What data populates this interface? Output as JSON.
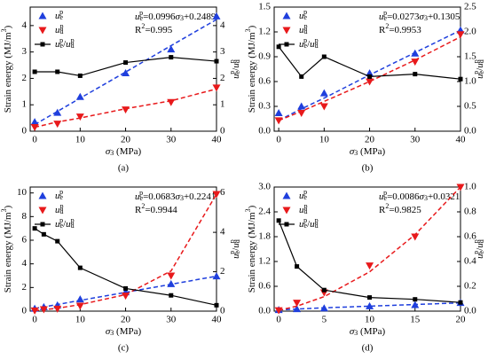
{
  "chart_data": [
    {
      "type": "line",
      "label": "(a)",
      "xlabel": "σ3 (MPa)",
      "ylabel": "Strain energy (MJ/m3)",
      "y2label": "uep/udp",
      "fit_equation": "uep=0.0996σ3+0.2489",
      "r_squared": "R2=0.995",
      "x": [
        0,
        5,
        10,
        20,
        30,
        40
      ],
      "xlim": [
        -1,
        40
      ],
      "xticks": [
        0,
        10,
        20,
        30,
        40
      ],
      "ylim": [
        0,
        4.7
      ],
      "yticks": [
        0,
        1,
        2,
        3,
        4
      ],
      "y2lim": [
        0,
        4.7
      ],
      "y2ticks": [
        0,
        1,
        2,
        3,
        4
      ],
      "series": [
        {
          "name": "uep",
          "color": "#1f3fdd",
          "marker": "triangle-up",
          "values": [
            0.35,
            0.7,
            1.3,
            2.2,
            3.1,
            4.35
          ],
          "fit_values": [
            0.25,
            0.75,
            1.25,
            2.24,
            3.24,
            4.23
          ]
        },
        {
          "name": "udp",
          "color": "#e8191b",
          "marker": "triangle-down",
          "values": [
            0.15,
            0.28,
            0.55,
            0.82,
            1.1,
            1.65
          ],
          "fit_values": [
            0.15,
            0.35,
            0.5,
            0.85,
            1.15,
            1.6
          ]
        },
        {
          "name": "uep/udp",
          "color": "#000000",
          "marker": "square",
          "axis": "y2",
          "values": [
            2.25,
            2.25,
            2.1,
            2.6,
            2.8,
            2.65
          ]
        }
      ]
    },
    {
      "type": "line",
      "label": "(b)",
      "xlabel": "σ3 (MPa)",
      "ylabel": "Strain energy (MJ/m3)",
      "y2label": "uep/udp",
      "fit_equation": "uep=0.0273σ3+0.1305",
      "r_squared": "R2=0.9953",
      "x": [
        0,
        5,
        10,
        20,
        30,
        40
      ],
      "xlim": [
        -1,
        40
      ],
      "xticks": [
        0,
        10,
        20,
        30,
        40
      ],
      "ylim": [
        0,
        1.5
      ],
      "yticks": [
        {
          "value": 0,
          "label": "0.0"
        },
        {
          "value": 0.3,
          "label": "0.3"
        },
        {
          "value": 0.6,
          "label": "0.6"
        },
        {
          "value": 0.9,
          "label": "0.9"
        },
        {
          "value": 1.2,
          "label": "1.2"
        },
        {
          "value": 1.5,
          "label": "1.5"
        }
      ],
      "y2lim": [
        0,
        2.5
      ],
      "y2ticks": [
        {
          "value": 0,
          "label": "0.0"
        },
        {
          "value": 0.5,
          "label": "0.5"
        },
        {
          "value": 1,
          "label": "1.0"
        },
        {
          "value": 1.5,
          "label": "1.5"
        },
        {
          "value": 2,
          "label": "2.0"
        },
        {
          "value": 2.5,
          "label": "2.5"
        }
      ],
      "series": [
        {
          "name": "uep",
          "color": "#1f3fdd",
          "marker": "triangle-up",
          "values": [
            0.22,
            0.3,
            0.46,
            0.7,
            0.94,
            1.22
          ],
          "fit_values": [
            0.13,
            0.27,
            0.4,
            0.68,
            0.95,
            1.22
          ]
        },
        {
          "name": "udp",
          "color": "#e8191b",
          "marker": "triangle-down",
          "values": [
            0.13,
            0.22,
            0.3,
            0.6,
            0.84,
            1.17
          ],
          "fit_values": [
            0.13,
            0.24,
            0.36,
            0.6,
            0.86,
            1.14
          ]
        },
        {
          "name": "uep/udp",
          "color": "#000000",
          "marker": "square",
          "axis": "y2",
          "values": [
            1.7,
            1.1,
            1.5,
            1.1,
            1.15,
            1.05
          ]
        }
      ]
    },
    {
      "type": "line",
      "label": "(c)",
      "xlabel": "σ3 (MPa)",
      "ylabel": "Strain energy (MJ/m3)",
      "y2label": "uep/udp",
      "fit_equation": "uep=0.0683σ3+0.2241",
      "r_squared": "R2=0.9944",
      "x": [
        0,
        2,
        5,
        10,
        20,
        30,
        40
      ],
      "xlim": [
        -1,
        40
      ],
      "xticks": [
        0,
        10,
        20,
        30,
        40
      ],
      "ylim": [
        0,
        10.5
      ],
      "yticks": [
        0,
        2,
        4,
        6,
        8,
        10
      ],
      "y2lim": [
        0,
        6.3
      ],
      "y2ticks": [
        0,
        2,
        4,
        6
      ],
      "series": [
        {
          "name": "uep",
          "color": "#1f3fdd",
          "marker": "triangle-up",
          "values": [
            0.22,
            0.35,
            0.5,
            1.0,
            1.6,
            2.3,
            2.95
          ],
          "fit_values": [
            0.22,
            0.36,
            0.56,
            0.91,
            1.59,
            2.27,
            2.96
          ]
        },
        {
          "name": "udp",
          "color": "#e8191b",
          "marker": "triangle-down",
          "values": [
            0.05,
            0.15,
            0.2,
            0.45,
            1.3,
            3.0,
            9.9
          ],
          "fit_values": [
            0.05,
            0.12,
            0.25,
            0.55,
            1.4,
            3.4,
            9.9
          ]
        },
        {
          "name": "uep/udp",
          "color": "#000000",
          "marker": "square",
          "axis": "y2",
          "values": [
            4.2,
            3.9,
            3.55,
            2.2,
            1.15,
            0.8,
            0.3
          ]
        }
      ]
    },
    {
      "type": "line",
      "label": "(d)",
      "xlabel": "σ3 (MPa)",
      "ylabel": "Strain energy (MJ/m3)",
      "y2label": "uep/udp",
      "fit_equation": "uep=0.0086σ3+0.0321",
      "r_squared": "R2=0.9825",
      "x": [
        0,
        2,
        5,
        10,
        15,
        20
      ],
      "xlim": [
        -0.5,
        20
      ],
      "xticks": [
        0,
        5,
        10,
        15,
        20
      ],
      "ylim": [
        0,
        3
      ],
      "yticks": [
        {
          "value": 0,
          "label": "0.0"
        },
        {
          "value": 0.6,
          "label": "0.6"
        },
        {
          "value": 1.2,
          "label": "1.2"
        },
        {
          "value": 1.8,
          "label": "1.8"
        },
        {
          "value": 2.4,
          "label": "2.4"
        },
        {
          "value": 3,
          "label": "3.0"
        }
      ],
      "y2lim": [
        0,
        1
      ],
      "y2ticks": [
        {
          "value": 0,
          "label": "0.0"
        },
        {
          "value": 0.2,
          "label": "0.2"
        },
        {
          "value": 0.4,
          "label": "0.4"
        },
        {
          "value": 0.6,
          "label": "0.6"
        },
        {
          "value": 0.8,
          "label": "0.8"
        },
        {
          "value": 1,
          "label": "1.0"
        }
      ],
      "series": [
        {
          "name": "uep",
          "color": "#1f3fdd",
          "marker": "triangle-up",
          "values": [
            0.03,
            0.05,
            0.07,
            0.12,
            0.15,
            0.2
          ],
          "fit_values": [
            0.03,
            0.05,
            0.08,
            0.12,
            0.16,
            0.2
          ]
        },
        {
          "name": "udp",
          "color": "#e8191b",
          "marker": "triangle-down",
          "values": [
            0.02,
            0.2,
            0.45,
            1.1,
            1.8,
            3.0
          ],
          "fit_values": [
            0.02,
            0.12,
            0.35,
            0.95,
            1.85,
            3.0
          ]
        },
        {
          "name": "uep/udp",
          "color": "#000000",
          "marker": "square",
          "axis": "y2",
          "values": [
            0.73,
            0.36,
            0.17,
            0.11,
            0.095,
            0.07
          ]
        }
      ]
    }
  ]
}
